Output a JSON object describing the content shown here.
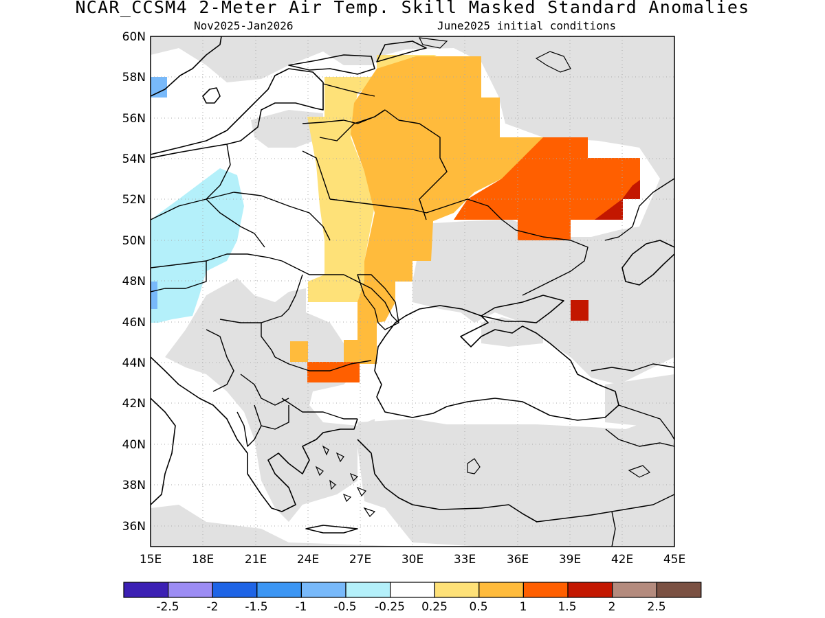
{
  "title": "NCAR_CCSM4 2-Meter Air Temp. Skill Masked Standard Anomalies",
  "subtitle_left": "Nov2025-Jan2026",
  "subtitle_right": "June2025 initial conditions",
  "map": {
    "lon_range": [
      15,
      45
    ],
    "lat_range": [
      35,
      60
    ],
    "lon_ticks": [
      "15E",
      "18E",
      "21E",
      "24E",
      "27E",
      "30E",
      "33E",
      "36E",
      "39E",
      "42E",
      "45E"
    ],
    "lat_ticks": [
      "36N",
      "38N",
      "40N",
      "42N",
      "44N",
      "46N",
      "48N",
      "50N",
      "52N",
      "54N",
      "56N",
      "58N",
      "60N"
    ],
    "gridlines": "dotted",
    "masked_color": "#e1e1e1",
    "coast_color": "#000000"
  },
  "colorbar": {
    "colors": [
      "#3c20b4",
      "#9c8cf4",
      "#1e64e6",
      "#3c96f4",
      "#78b9fa",
      "#b4f0fa",
      "#ffffff",
      "#fee178",
      "#ffbb3c",
      "#ff5f00",
      "#c31700",
      "#b48b7e",
      "#7b5143"
    ],
    "labels": [
      "-2.5",
      "-2",
      "-1.5",
      "-1",
      "-0.5",
      "-0.25",
      "0.25",
      "0.5",
      "1",
      "1.5",
      "2",
      "2.5"
    ]
  }
}
